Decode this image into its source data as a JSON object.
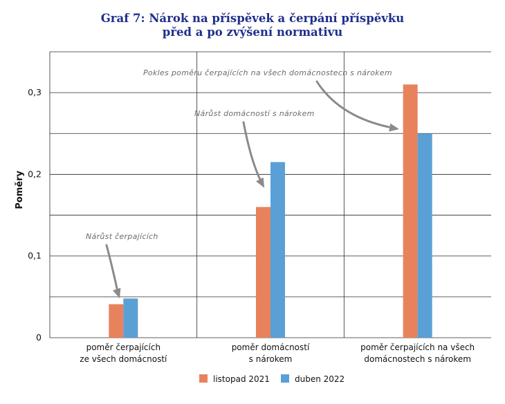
{
  "colors": {
    "series_a": "#e8825d",
    "series_b": "#5aa0d6",
    "title": "#1f2f8a"
  },
  "chart_data": {
    "type": "bar",
    "title": [
      "Graf 7: Nárok na příspěvek a čerpání příspěvku",
      "před a po zvýšení normativu"
    ],
    "ylabel": "Poměry",
    "xlabel": "",
    "ylim": [
      0,
      0.35
    ],
    "y_ticks": [
      0,
      0.1,
      0.2,
      0.3
    ],
    "y_tick_labels": [
      "0",
      "0,1",
      "0,2",
      "0,3"
    ],
    "grid": true,
    "legend_position": "bottom",
    "categories": [
      [
        "poměr čerpajících",
        "ze všech domácností"
      ],
      [
        "poměr domácností",
        "s nárokem"
      ],
      [
        "poměr čerpajících na všech",
        "domácnostech s nárokem"
      ]
    ],
    "series": [
      {
        "name": "listopad 2021",
        "values": [
          0.041,
          0.16,
          0.31
        ]
      },
      {
        "name": "duben 2022",
        "values": [
          0.048,
          0.215,
          0.25
        ]
      }
    ],
    "annotations": [
      {
        "text": "Nárůst čerpajících",
        "category_index": 0
      },
      {
        "text": "Nárůst domácností s nárokem",
        "category_index": 1
      },
      {
        "text": "Pokles poměru čerpajících na všech domácnostech s nárokem",
        "category_index": 2
      }
    ]
  }
}
